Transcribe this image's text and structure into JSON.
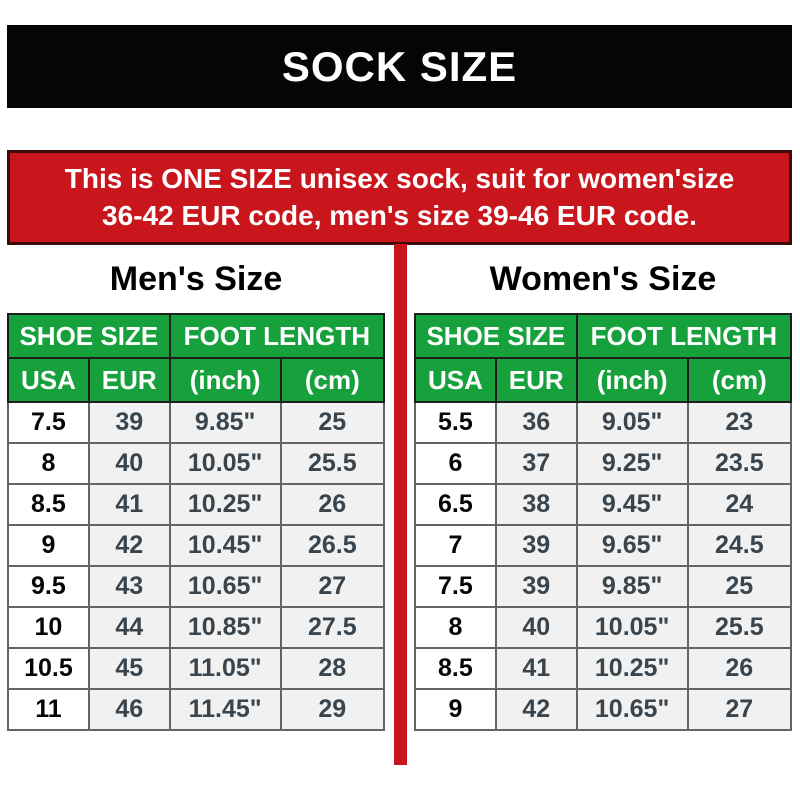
{
  "header": {
    "title": "SOCK SIZE"
  },
  "banner": {
    "line1": "This is ONE SIZE unisex sock, suit for women'size",
    "line2": "36-42 EUR code, men's size 39-46 EUR code."
  },
  "colors": {
    "header_bg": "#050505",
    "banner_red": "#c9161c",
    "banner_border": "#3d0c08",
    "table_header_green": "#17a13d",
    "cell_gray": "#f1f1f1",
    "cell_white": "#ffffff"
  },
  "tables": [
    {
      "title": "Men's Size",
      "group_headers": [
        "SHOE SIZE",
        "FOOT LENGTH"
      ],
      "col_headers": [
        "USA",
        "EUR",
        "(inch)",
        "(cm)"
      ],
      "rows": [
        [
          "7.5",
          "39",
          "9.85\"",
          "25"
        ],
        [
          "8",
          "40",
          "10.05\"",
          "25.5"
        ],
        [
          "8.5",
          "41",
          "10.25\"",
          "26"
        ],
        [
          "9",
          "42",
          "10.45\"",
          "26.5"
        ],
        [
          "9.5",
          "43",
          "10.65\"",
          "27"
        ],
        [
          "10",
          "44",
          "10.85\"",
          "27.5"
        ],
        [
          "10.5",
          "45",
          "11.05\"",
          "28"
        ],
        [
          "11",
          "46",
          "11.45\"",
          "29"
        ]
      ]
    },
    {
      "title": "Women's Size",
      "group_headers": [
        "SHOE SIZE",
        "FOOT LENGTH"
      ],
      "col_headers": [
        "USA",
        "EUR",
        "(inch)",
        "(cm)"
      ],
      "rows": [
        [
          "5.5",
          "36",
          "9.05\"",
          "23"
        ],
        [
          "6",
          "37",
          "9.25\"",
          "23.5"
        ],
        [
          "6.5",
          "38",
          "9.45\"",
          "24"
        ],
        [
          "7",
          "39",
          "9.65\"",
          "24.5"
        ],
        [
          "7.5",
          "39",
          "9.85\"",
          "25"
        ],
        [
          "8",
          "40",
          "10.05\"",
          "25.5"
        ],
        [
          "8.5",
          "41",
          "10.25\"",
          "26"
        ],
        [
          "9",
          "42",
          "10.65\"",
          "27"
        ]
      ]
    }
  ]
}
